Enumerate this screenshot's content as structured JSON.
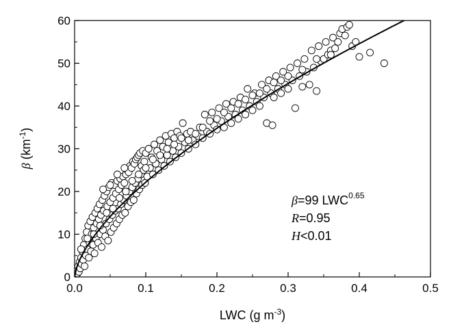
{
  "chart_data": {
    "type": "scatter",
    "title": "",
    "xlabel": "LWC (g m⁻³)",
    "ylabel": "β (km⁻¹)",
    "xlim": [
      0,
      0.5
    ],
    "ylim": [
      0,
      60
    ],
    "x_ticks": [
      "0.0",
      "0.1",
      "0.2",
      "0.3",
      "0.4",
      "0.5"
    ],
    "y_ticks": [
      "0",
      "10",
      "20",
      "30",
      "40",
      "50",
      "60"
    ],
    "grid": false,
    "legend": "none",
    "marker": "open-circle",
    "fit": {
      "type": "power",
      "coefficient": 99,
      "exponent": 0.65
    },
    "annotations": {
      "eq_symbol": "β",
      "eq_main": "=99 LWC",
      "eq_sup": "0.65",
      "r_symbol": "R",
      "r_value": "=0.95",
      "h_symbol": "H",
      "h_value": "<0.01"
    },
    "points": [
      [
        0.002,
        0.5
      ],
      [
        0.003,
        1.5
      ],
      [
        0.004,
        0.8
      ],
      [
        0.005,
        2.5
      ],
      [
        0.006,
        1.2
      ],
      [
        0.007,
        3.5
      ],
      [
        0.008,
        2.0
      ],
      [
        0.009,
        4.5
      ],
      [
        0.01,
        3.0
      ],
      [
        0.011,
        6.0
      ],
      [
        0.012,
        4.0
      ],
      [
        0.013,
        7.5
      ],
      [
        0.014,
        2.5
      ],
      [
        0.015,
        9.0
      ],
      [
        0.016,
        5.0
      ],
      [
        0.017,
        10.5
      ],
      [
        0.018,
        6.5
      ],
      [
        0.019,
        12.0
      ],
      [
        0.02,
        4.5
      ],
      [
        0.021,
        8.0
      ],
      [
        0.022,
        13.0
      ],
      [
        0.023,
        6.0
      ],
      [
        0.024,
        10.0
      ],
      [
        0.025,
        14.0
      ],
      [
        0.026,
        7.5
      ],
      [
        0.027,
        11.5
      ],
      [
        0.028,
        5.5
      ],
      [
        0.029,
        15.0
      ],
      [
        0.03,
        9.0
      ],
      [
        0.031,
        12.5
      ],
      [
        0.032,
        16.0
      ],
      [
        0.033,
        8.0
      ],
      [
        0.034,
        13.5
      ],
      [
        0.035,
        17.0
      ],
      [
        0.036,
        10.0
      ],
      [
        0.037,
        14.5
      ],
      [
        0.038,
        7.0
      ],
      [
        0.039,
        18.0
      ],
      [
        0.04,
        11.0
      ],
      [
        0.041,
        15.5
      ],
      [
        0.042,
        19.0
      ],
      [
        0.043,
        9.5
      ],
      [
        0.044,
        12.5
      ],
      [
        0.045,
        20.0
      ],
      [
        0.046,
        16.5
      ],
      [
        0.047,
        8.5
      ],
      [
        0.048,
        21.0
      ],
      [
        0.049,
        13.5
      ],
      [
        0.05,
        17.5
      ],
      [
        0.051,
        10.5
      ],
      [
        0.052,
        22.0
      ],
      [
        0.053,
        14.5
      ],
      [
        0.054,
        18.5
      ],
      [
        0.055,
        11.5
      ],
      [
        0.056,
        21.5
      ],
      [
        0.057,
        15.5
      ],
      [
        0.058,
        19.5
      ],
      [
        0.059,
        12.5
      ],
      [
        0.06,
        22.5
      ],
      [
        0.061,
        16.0
      ],
      [
        0.062,
        20.5
      ],
      [
        0.063,
        13.5
      ],
      [
        0.064,
        23.0
      ],
      [
        0.065,
        17.0
      ],
      [
        0.066,
        21.5
      ],
      [
        0.067,
        14.5
      ],
      [
        0.068,
        23.5
      ],
      [
        0.069,
        18.0
      ],
      [
        0.07,
        22.0
      ],
      [
        0.071,
        15.0
      ],
      [
        0.072,
        24.0
      ],
      [
        0.073,
        19.0
      ],
      [
        0.074,
        25.0
      ],
      [
        0.075,
        16.5
      ],
      [
        0.076,
        24.5
      ],
      [
        0.077,
        20.0
      ],
      [
        0.078,
        26.0
      ],
      [
        0.079,
        17.5
      ],
      [
        0.08,
        25.5
      ],
      [
        0.081,
        21.0
      ],
      [
        0.082,
        27.0
      ],
      [
        0.083,
        18.0
      ],
      [
        0.084,
        26.5
      ],
      [
        0.085,
        22.0
      ],
      [
        0.086,
        27.5
      ],
      [
        0.087,
        19.5
      ],
      [
        0.088,
        28.0
      ],
      [
        0.089,
        23.0
      ],
      [
        0.09,
        28.5
      ],
      [
        0.091,
        20.5
      ],
      [
        0.092,
        29.0
      ],
      [
        0.093,
        24.0
      ],
      [
        0.094,
        26.0
      ],
      [
        0.095,
        21.5
      ],
      [
        0.096,
        29.5
      ],
      [
        0.097,
        25.0
      ],
      [
        0.098,
        27.0
      ],
      [
        0.099,
        22.0
      ],
      [
        0.1,
        29.0
      ],
      [
        0.102,
        23.5
      ],
      [
        0.104,
        30.0
      ],
      [
        0.106,
        25.5
      ],
      [
        0.108,
        28.0
      ],
      [
        0.11,
        24.0
      ],
      [
        0.112,
        31.0
      ],
      [
        0.114,
        26.5
      ],
      [
        0.116,
        29.5
      ],
      [
        0.118,
        25.0
      ],
      [
        0.12,
        32.0
      ],
      [
        0.122,
        27.5
      ],
      [
        0.124,
        30.5
      ],
      [
        0.126,
        26.0
      ],
      [
        0.128,
        33.0
      ],
      [
        0.13,
        28.5
      ],
      [
        0.132,
        31.5
      ],
      [
        0.134,
        27.0
      ],
      [
        0.136,
        33.5
      ],
      [
        0.138,
        29.5
      ],
      [
        0.14,
        32.5
      ],
      [
        0.142,
        28.0
      ],
      [
        0.144,
        34.0
      ],
      [
        0.146,
        30.5
      ],
      [
        0.148,
        33.0
      ],
      [
        0.15,
        29.0
      ],
      [
        0.152,
        36.0
      ],
      [
        0.155,
        31.5
      ],
      [
        0.158,
        33.5
      ],
      [
        0.16,
        30.0
      ],
      [
        0.163,
        34.0
      ],
      [
        0.166,
        32.0
      ],
      [
        0.17,
        31.0
      ],
      [
        0.173,
        33.0
      ],
      [
        0.176,
        35.0
      ],
      [
        0.18,
        32.5
      ],
      [
        0.183,
        38.0
      ],
      [
        0.186,
        34.0
      ],
      [
        0.19,
        33.5
      ],
      [
        0.193,
        38.5
      ],
      [
        0.196,
        35.5
      ],
      [
        0.2,
        34.5
      ],
      [
        0.203,
        39.5
      ],
      [
        0.206,
        36.5
      ],
      [
        0.21,
        35.0
      ],
      [
        0.213,
        40.5
      ],
      [
        0.216,
        37.5
      ],
      [
        0.22,
        36.0
      ],
      [
        0.223,
        41.0
      ],
      [
        0.226,
        38.0
      ],
      [
        0.23,
        37.0
      ],
      [
        0.233,
        42.0
      ],
      [
        0.236,
        39.0
      ],
      [
        0.24,
        38.0
      ],
      [
        0.243,
        44.0
      ],
      [
        0.246,
        40.0
      ],
      [
        0.25,
        39.0
      ],
      [
        0.253,
        43.0
      ],
      [
        0.256,
        41.0
      ],
      [
        0.26,
        40.0
      ],
      [
        0.263,
        45.0
      ],
      [
        0.266,
        42.0
      ],
      [
        0.27,
        36.0
      ],
      [
        0.273,
        46.0
      ],
      [
        0.276,
        43.0
      ],
      [
        0.278,
        35.5
      ],
      [
        0.28,
        42.0
      ],
      [
        0.283,
        47.0
      ],
      [
        0.286,
        44.0
      ],
      [
        0.29,
        43.0
      ],
      [
        0.293,
        48.0
      ],
      [
        0.296,
        45.0
      ],
      [
        0.3,
        44.0
      ],
      [
        0.303,
        49.0
      ],
      [
        0.306,
        46.0
      ],
      [
        0.31,
        39.5
      ],
      [
        0.313,
        50.0
      ],
      [
        0.316,
        47.0
      ],
      [
        0.32,
        44.5
      ],
      [
        0.323,
        51.0
      ],
      [
        0.326,
        48.0
      ],
      [
        0.33,
        45.0
      ],
      [
        0.333,
        53.0
      ],
      [
        0.336,
        49.0
      ],
      [
        0.34,
        43.5
      ],
      [
        0.343,
        54.0
      ],
      [
        0.346,
        50.5
      ],
      [
        0.35,
        51.0
      ],
      [
        0.353,
        55.0
      ],
      [
        0.356,
        52.0
      ],
      [
        0.36,
        53.0
      ],
      [
        0.363,
        56.0
      ],
      [
        0.366,
        53.5
      ],
      [
        0.37,
        55.0
      ],
      [
        0.373,
        57.0
      ],
      [
        0.376,
        58.0
      ],
      [
        0.38,
        56.5
      ],
      [
        0.383,
        58.5
      ],
      [
        0.386,
        59.0
      ],
      [
        0.39,
        54.0
      ],
      [
        0.395,
        55.0
      ],
      [
        0.4,
        51.5
      ],
      [
        0.415,
        52.5
      ],
      [
        0.435,
        50.0
      ],
      [
        0.009,
        6.5
      ],
      [
        0.018,
        9.0
      ],
      [
        0.027,
        10.0
      ],
      [
        0.036,
        12.0
      ],
      [
        0.045,
        15.0
      ],
      [
        0.054,
        16.0
      ],
      [
        0.063,
        18.5
      ],
      [
        0.072,
        20.0
      ],
      [
        0.081,
        22.5
      ],
      [
        0.09,
        24.0
      ],
      [
        0.1,
        25.5
      ],
      [
        0.11,
        27.5
      ],
      [
        0.12,
        28.5
      ],
      [
        0.13,
        30.0
      ],
      [
        0.14,
        31.0
      ],
      [
        0.15,
        32.5
      ],
      [
        0.16,
        32.0
      ],
      [
        0.17,
        33.5
      ],
      [
        0.18,
        35.0
      ],
      [
        0.19,
        36.5
      ],
      [
        0.2,
        37.0
      ],
      [
        0.21,
        38.5
      ],
      [
        0.22,
        39.5
      ],
      [
        0.23,
        40.5
      ],
      [
        0.24,
        41.5
      ],
      [
        0.25,
        42.5
      ],
      [
        0.26,
        43.0
      ],
      [
        0.27,
        44.0
      ],
      [
        0.28,
        45.5
      ],
      [
        0.29,
        46.0
      ],
      [
        0.3,
        47.0
      ],
      [
        0.32,
        48.5
      ],
      [
        0.34,
        51.0
      ],
      [
        0.36,
        52.0
      ],
      [
        0.04,
        20.5
      ],
      [
        0.05,
        21.5
      ],
      [
        0.06,
        24.0
      ],
      [
        0.07,
        25.5
      ]
    ]
  }
}
